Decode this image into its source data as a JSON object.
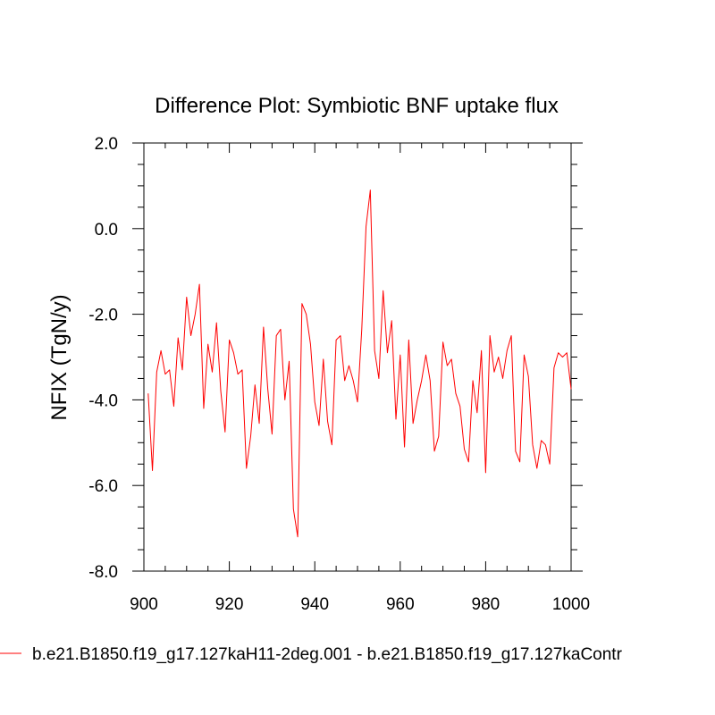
{
  "chart_data": {
    "type": "line",
    "title": "Difference Plot: Symbiotic BNF uptake flux",
    "xlabel": "",
    "ylabel": "NFIX  (TgN/y)",
    "xlim": [
      900,
      1000
    ],
    "ylim": [
      -8.0,
      2.0
    ],
    "x_ticks": [
      900,
      920,
      940,
      960,
      980,
      1000
    ],
    "x_tick_labels": [
      "900",
      "920",
      "940",
      "960",
      "980",
      "1000"
    ],
    "y_ticks": [
      -8.0,
      -6.0,
      -4.0,
      -2.0,
      0.0,
      2.0
    ],
    "y_tick_labels": [
      "-8.0",
      "-6.0",
      "-4.0",
      "-2.0",
      "0.0",
      "2.0"
    ],
    "grid": false,
    "legend_position": "bottom",
    "series": [
      {
        "name": "b.e21.B1850.f19_g17.127kaH11-2deg.001 - b.e21.B1850.f19_g17.127kaContr",
        "color": "#ff0000",
        "x": [
          901,
          902,
          903,
          904,
          905,
          906,
          907,
          908,
          909,
          910,
          911,
          912,
          913,
          914,
          915,
          916,
          917,
          918,
          919,
          920,
          921,
          922,
          923,
          924,
          925,
          926,
          927,
          928,
          929,
          930,
          931,
          932,
          933,
          934,
          935,
          936,
          937,
          938,
          939,
          940,
          941,
          942,
          943,
          944,
          945,
          946,
          947,
          948,
          949,
          950,
          951,
          952,
          953,
          954,
          955,
          956,
          957,
          958,
          959,
          960,
          961,
          962,
          963,
          964,
          965,
          966,
          967,
          968,
          969,
          970,
          971,
          972,
          973,
          974,
          975,
          976,
          977,
          978,
          979,
          980,
          981,
          982,
          983,
          984,
          985,
          986,
          987,
          988,
          989,
          990,
          991,
          992,
          993,
          994,
          995,
          996,
          997,
          998,
          999,
          1000
        ],
        "values": [
          -3.85,
          -5.65,
          -3.35,
          -2.85,
          -3.4,
          -3.3,
          -4.15,
          -2.55,
          -3.3,
          -1.6,
          -2.5,
          -2.0,
          -1.3,
          -4.2,
          -2.7,
          -3.35,
          -2.2,
          -3.8,
          -4.75,
          -2.6,
          -2.9,
          -3.4,
          -3.3,
          -5.6,
          -4.85,
          -3.65,
          -4.55,
          -2.3,
          -3.75,
          -4.8,
          -2.5,
          -2.35,
          -4.0,
          -3.1,
          -6.55,
          -7.2,
          -1.75,
          -2.0,
          -2.7,
          -4.05,
          -4.6,
          -3.05,
          -4.5,
          -5.05,
          -2.6,
          -2.5,
          -3.55,
          -3.2,
          -3.55,
          -4.05,
          -2.35,
          0.05,
          0.9,
          -2.85,
          -3.5,
          -1.45,
          -2.9,
          -2.15,
          -4.45,
          -2.95,
          -5.1,
          -2.6,
          -4.55,
          -4.0,
          -3.55,
          -2.95,
          -3.55,
          -5.2,
          -4.85,
          -2.65,
          -3.2,
          -3.05,
          -3.85,
          -4.15,
          -5.15,
          -5.45,
          -3.55,
          -4.3,
          -2.85,
          -5.7,
          -2.5,
          -3.35,
          -3.0,
          -3.5,
          -2.85,
          -2.5,
          -5.2,
          -5.45,
          -2.95,
          -3.45,
          -5.05,
          -5.6,
          -4.95,
          -5.05,
          -5.5,
          -3.25,
          -2.9,
          -3.0,
          -2.9,
          -3.75
        ]
      }
    ]
  }
}
